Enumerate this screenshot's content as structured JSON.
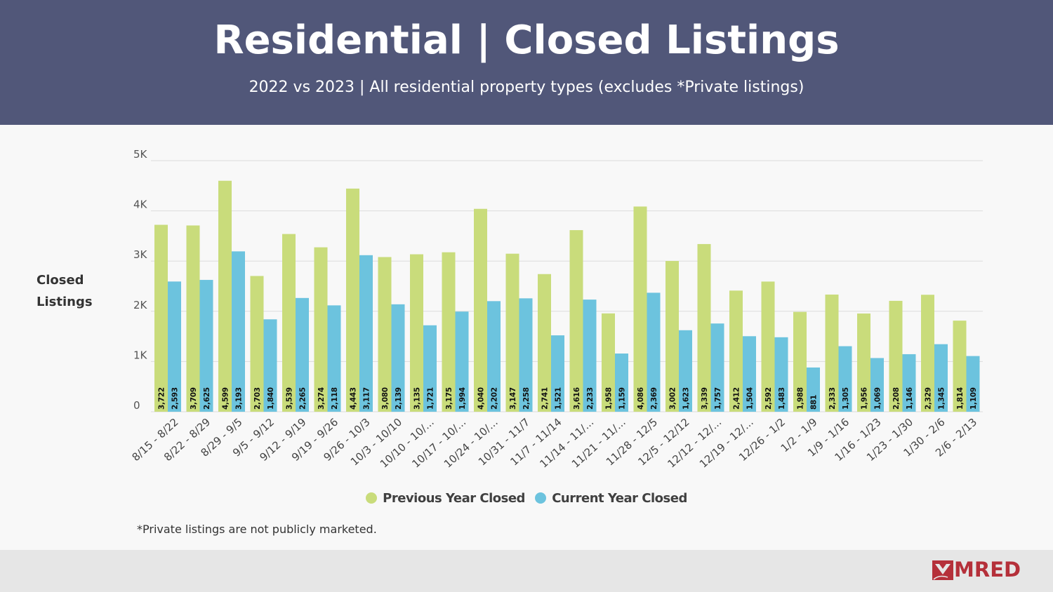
{
  "header": {
    "title": "Residential | Closed Listings",
    "subtitle": "2022 vs 2023 | All residential property types (excludes *Private listings)"
  },
  "footnote": "*Private listings are not publicly marketed.",
  "logo": {
    "text": "MRED",
    "color": "#b5303a"
  },
  "colors": {
    "previous": "#c9dc7b",
    "current": "#6cc3de",
    "header": "#515779"
  },
  "chart_data": {
    "type": "bar",
    "ylabel": "Closed Listings",
    "ylim": [
      0,
      5000
    ],
    "yticks": [
      0,
      1000,
      2000,
      3000,
      4000,
      5000
    ],
    "yticklabels": [
      "0",
      "1K",
      "2K",
      "3K",
      "4K",
      "5K"
    ],
    "grid": true,
    "legend_position": "bottom",
    "categories": [
      "8/15 - 8/22",
      "8/22 - 8/29",
      "8/29 - 9/5",
      "9/5 - 9/12",
      "9/12 - 9/19",
      "9/19 - 9/26",
      "9/26 - 10/3",
      "10/3 - 10/10",
      "10/10 - 10/...",
      "10/17 - 10/...",
      "10/24 - 10/...",
      "10/31 - 11/7",
      "11/7 - 11/14",
      "11/14 - 11/...",
      "11/21 - 11/...",
      "11/28 - 12/5",
      "12/5 - 12/12",
      "12/12 - 12/...",
      "12/19 - 12/...",
      "12/26 - 1/2",
      "1/2 - 1/9",
      "1/9 - 1/16",
      "1/16 - 1/23",
      "1/23 - 1/30",
      "1/30 - 2/6",
      "2/6 - 2/13"
    ],
    "series": [
      {
        "name": "Previous Year Closed",
        "values": [
          3722,
          3709,
          4599,
          2703,
          3539,
          3274,
          4443,
          3080,
          3135,
          3175,
          4040,
          3147,
          2741,
          3616,
          1958,
          4086,
          3002,
          3339,
          2412,
          2592,
          1988,
          2333,
          1956,
          2208,
          2329,
          1814
        ],
        "labels": [
          "3,722",
          "3,709",
          "4,599",
          "2,703",
          "3,539",
          "3,274",
          "4,443",
          "3,080",
          "3,135",
          "3,175",
          "4,040",
          "3,147",
          "2,741",
          "3,616",
          "1,958",
          "4,086",
          "3,002",
          "3,339",
          "2,412",
          "2,592",
          "1,988",
          "2,333",
          "1,956",
          "2,208",
          "2,329",
          "1,814"
        ]
      },
      {
        "name": "Current Year Closed",
        "values": [
          2593,
          2625,
          3193,
          1840,
          2265,
          2118,
          3117,
          2139,
          1721,
          1994,
          2202,
          2258,
          1521,
          2233,
          1159,
          2369,
          1623,
          1757,
          1504,
          1483,
          881,
          1305,
          1069,
          1146,
          1345,
          1109
        ],
        "labels": [
          "2,593",
          "2,625",
          "3,193",
          "1,840",
          "2,265",
          "2,118",
          "3,117",
          "2,139",
          "1,721",
          "1,994",
          "2,202",
          "2,258",
          "1,521",
          "2,233",
          "1,159",
          "2,369",
          "1,623",
          "1,757",
          "1,504",
          "1,483",
          "881",
          "1,305",
          "1,069",
          "1,146",
          "1,345",
          "1,109"
        ]
      }
    ]
  }
}
